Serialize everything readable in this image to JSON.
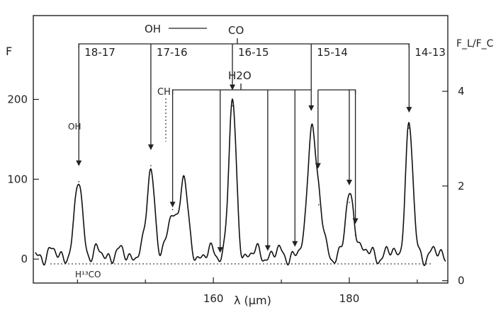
{
  "chart_data": {
    "type": "line",
    "xlabel": "λ (μm)",
    "ylabel_left": "F",
    "ylabel_right": "F_L/F_C",
    "xlim": [
      133.5,
      194.5
    ],
    "ylim": [
      -30,
      305
    ],
    "ylim_right": [
      -0.05,
      5.6
    ],
    "x_ticks": [
      160,
      180
    ],
    "y_ticks": [
      0,
      100,
      200
    ],
    "y_ticks_right": [
      0,
      2,
      4
    ],
    "peaks": [
      {
        "x": 140.2,
        "y": 97
      },
      {
        "x": 150.8,
        "y": 117
      },
      {
        "x": 154.0,
        "y": 62
      },
      {
        "x": 155.6,
        "y": 103
      },
      {
        "x": 162.8,
        "y": 192
      },
      {
        "x": 174.4,
        "y": 166
      },
      {
        "x": 175.5,
        "y": 68
      },
      {
        "x": 180.0,
        "y": 71
      },
      {
        "x": 180.9,
        "y": 30
      },
      {
        "x": 188.8,
        "y": 164
      }
    ],
    "annotations": {
      "oh_label": "OH",
      "co_label": "CO",
      "co_transitions": [
        {
          "label": "18-17",
          "x": 140.2
        },
        {
          "label": "17-16",
          "x": 150.8
        },
        {
          "label": "16-15",
          "x": 162.8
        },
        {
          "label": "15-14",
          "x": 174.4
        },
        {
          "label": "14-13",
          "x": 188.8
        }
      ],
      "h2o_label": "H2O",
      "h2o_lines_x": [
        154.0,
        161.0,
        168.0,
        172.0,
        175.4,
        180.0,
        180.9
      ],
      "ch_label": "CH",
      "oh_small_label": "OH",
      "h13co_label": "H¹³CO"
    }
  }
}
